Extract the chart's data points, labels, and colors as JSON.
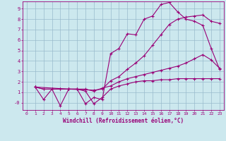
{
  "bg_color": "#cce8ee",
  "line_color": "#990077",
  "grid_color": "#99bbcc",
  "xlabel": "Windchill (Refroidissement éolien,°C)",
  "xlim": [
    -0.5,
    23.5
  ],
  "ylim": [
    -0.7,
    9.7
  ],
  "xticks": [
    0,
    1,
    2,
    3,
    4,
    5,
    6,
    7,
    8,
    9,
    10,
    11,
    12,
    13,
    14,
    15,
    16,
    17,
    18,
    19,
    20,
    21,
    22,
    23
  ],
  "yticks": [
    0,
    1,
    2,
    3,
    4,
    5,
    6,
    7,
    8,
    9
  ],
  "ytick_labels": [
    "-0",
    "1",
    "2",
    "3",
    "4",
    "5",
    "6",
    "7",
    "8",
    "9"
  ],
  "lines": [
    {
      "x": [
        1,
        2,
        3,
        4,
        5,
        6,
        7,
        8,
        9,
        10,
        11,
        12,
        13,
        14,
        15,
        16,
        17,
        18,
        19,
        20,
        21,
        22,
        23
      ],
      "y": [
        1.5,
        0.3,
        1.3,
        1.3,
        1.3,
        1.3,
        1.1,
        -0.1,
        0.5,
        1.3,
        1.6,
        1.8,
        2.0,
        2.1,
        2.1,
        2.2,
        2.2,
        2.3,
        2.3,
        2.3,
        2.3,
        2.3,
        2.3
      ]
    },
    {
      "x": [
        1,
        2,
        3,
        4,
        5,
        6,
        7,
        8,
        9,
        10,
        11,
        12,
        13,
        14,
        15,
        16,
        17,
        18,
        19,
        20,
        21,
        22,
        23
      ],
      "y": [
        1.5,
        1.3,
        1.3,
        1.3,
        1.3,
        1.3,
        1.3,
        1.1,
        1.4,
        1.6,
        2.0,
        2.3,
        2.5,
        2.7,
        2.9,
        3.1,
        3.3,
        3.5,
        3.8,
        4.2,
        4.6,
        4.1,
        3.3
      ]
    },
    {
      "x": [
        1,
        2,
        3,
        4,
        5,
        6,
        7,
        8,
        9,
        10,
        11,
        12,
        13,
        14,
        15,
        16,
        17,
        18,
        19,
        20,
        21,
        22,
        23
      ],
      "y": [
        1.5,
        1.3,
        1.3,
        -0.3,
        1.3,
        1.3,
        -0.1,
        0.5,
        0.3,
        4.7,
        5.2,
        6.6,
        6.5,
        8.0,
        8.3,
        9.4,
        9.6,
        8.7,
        8.0,
        7.8,
        7.4,
        5.2,
        3.2
      ]
    },
    {
      "x": [
        1,
        5,
        8,
        9,
        10,
        11,
        12,
        13,
        14,
        15,
        16,
        17,
        18,
        19,
        20,
        21,
        22,
        23
      ],
      "y": [
        1.5,
        1.3,
        1.2,
        1.3,
        2.1,
        2.5,
        3.2,
        3.8,
        4.5,
        5.5,
        6.5,
        7.5,
        8.0,
        8.2,
        8.3,
        8.4,
        7.8,
        7.6
      ]
    }
  ]
}
